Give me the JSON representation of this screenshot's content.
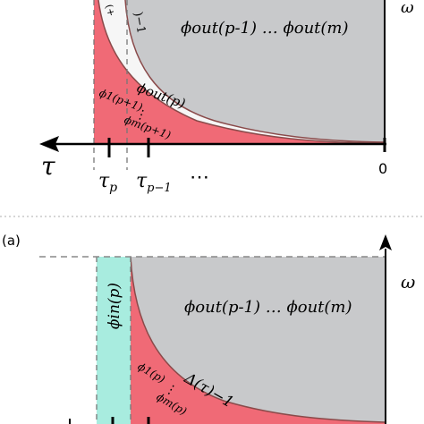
{
  "colors": {
    "gray_region": "#c8c9cb",
    "white_region": "#f6f6f6",
    "red_region": "#f06a76",
    "cyan_band": "#a8ecdf",
    "curve": "#8a4a4a",
    "divider": "#bdbdbd"
  },
  "top_panel": {
    "axis_label_tau": "τ",
    "tick_tau_p": "τ",
    "tick_tau_p_sub": "p",
    "tick_tau_p1": "τ",
    "tick_tau_p1_sub": "p−1",
    "ellipsis": "⋯",
    "origin": "0",
    "gray_label": "ϕout(p-1) … ϕout(m)",
    "white_label": "ϕout(p)",
    "red_label_1": "ϕ1(p+1)",
    "red_dots": "⋮",
    "red_label_2": "ϕm(p+1)",
    "curve_label_top": ")−1",
    "curve_label_left": "(+",
    "omega_corner": "ω"
  },
  "panel_label": "(a)",
  "bottom_panel": {
    "omega_label": "ω",
    "gray_label": "ϕout(p-1) … ϕout(m)",
    "cyan_label": "ϕin(p)",
    "red_label_1": "ϕ1(p)",
    "red_dots": "⋮",
    "red_label_2": "ϕm(p)",
    "curve_label": "Δ(τ)−1"
  }
}
